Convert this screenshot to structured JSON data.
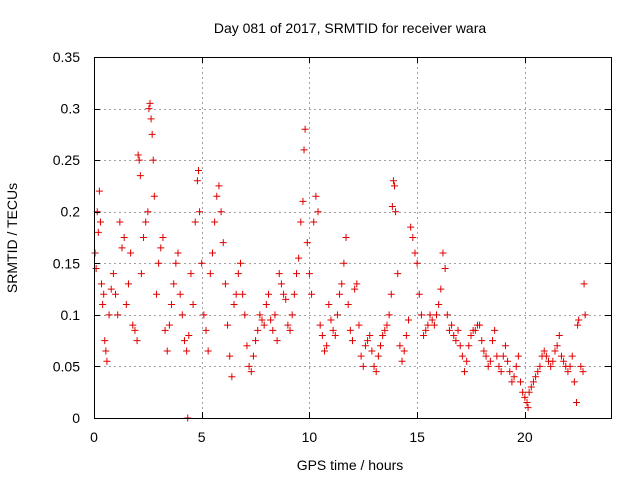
{
  "chart_data": {
    "type": "scatter",
    "title": "Day 081 of 2017, SRMTID for receiver wara",
    "xlabel": "GPS time / hours",
    "ylabel": "SRMTID / TECUs",
    "xlim": [
      0,
      24
    ],
    "ylim": [
      0,
      0.35
    ],
    "xticks": [
      0,
      5,
      10,
      15,
      20
    ],
    "xtick_labels": [
      "0",
      "5",
      "10",
      "15",
      "20"
    ],
    "yticks": [
      0,
      0.05,
      0.1,
      0.15,
      0.2,
      0.25,
      0.3,
      0.35
    ],
    "ytick_labels": [
      "0",
      "0.05",
      "0.1",
      "0.15",
      "0.2",
      "0.25",
      "0.3",
      "0.35"
    ],
    "grid": true,
    "marker": "+",
    "color": "#e00000",
    "series": [
      {
        "name": "SRMTID",
        "points": [
          [
            0.05,
            0.16
          ],
          [
            0.1,
            0.145
          ],
          [
            0.15,
            0.2
          ],
          [
            0.2,
            0.18
          ],
          [
            0.25,
            0.22
          ],
          [
            0.3,
            0.19
          ],
          [
            0.35,
            0.13
          ],
          [
            0.4,
            0.11
          ],
          [
            0.45,
            0.12
          ],
          [
            0.5,
            0.075
          ],
          [
            0.55,
            0.065
          ],
          [
            0.6,
            0.055
          ],
          [
            0.7,
            0.1
          ],
          [
            0.8,
            0.125
          ],
          [
            0.9,
            0.14
          ],
          [
            1.0,
            0.12
          ],
          [
            1.1,
            0.1
          ],
          [
            1.2,
            0.19
          ],
          [
            1.3,
            0.165
          ],
          [
            1.4,
            0.175
          ],
          [
            1.5,
            0.11
          ],
          [
            1.6,
            0.13
          ],
          [
            1.7,
            0.16
          ],
          [
            1.8,
            0.09
          ],
          [
            1.9,
            0.085
          ],
          [
            2.0,
            0.075
          ],
          [
            2.05,
            0.255
          ],
          [
            2.1,
            0.25
          ],
          [
            2.15,
            0.235
          ],
          [
            2.2,
            0.14
          ],
          [
            2.3,
            0.175
          ],
          [
            2.4,
            0.19
          ],
          [
            2.5,
            0.2
          ],
          [
            2.55,
            0.3
          ],
          [
            2.6,
            0.305
          ],
          [
            2.65,
            0.29
          ],
          [
            2.7,
            0.275
          ],
          [
            2.75,
            0.25
          ],
          [
            2.8,
            0.215
          ],
          [
            2.9,
            0.12
          ],
          [
            3.0,
            0.15
          ],
          [
            3.1,
            0.165
          ],
          [
            3.2,
            0.175
          ],
          [
            3.3,
            0.085
          ],
          [
            3.4,
            0.065
          ],
          [
            3.5,
            0.09
          ],
          [
            3.6,
            0.11
          ],
          [
            3.7,
            0.13
          ],
          [
            3.8,
            0.15
          ],
          [
            3.9,
            0.16
          ],
          [
            4.0,
            0.12
          ],
          [
            4.1,
            0.1
          ],
          [
            4.2,
            0.075
          ],
          [
            4.3,
            0.065
          ],
          [
            4.35,
            0.0
          ],
          [
            4.4,
            0.08
          ],
          [
            4.5,
            0.14
          ],
          [
            4.6,
            0.11
          ],
          [
            4.7,
            0.19
          ],
          [
            4.8,
            0.23
          ],
          [
            4.85,
            0.24
          ],
          [
            4.9,
            0.2
          ],
          [
            5.0,
            0.15
          ],
          [
            5.1,
            0.1
          ],
          [
            5.2,
            0.085
          ],
          [
            5.3,
            0.065
          ],
          [
            5.4,
            0.14
          ],
          [
            5.5,
            0.16
          ],
          [
            5.6,
            0.19
          ],
          [
            5.7,
            0.215
          ],
          [
            5.8,
            0.225
          ],
          [
            5.9,
            0.2
          ],
          [
            6.0,
            0.17
          ],
          [
            6.1,
            0.13
          ],
          [
            6.2,
            0.09
          ],
          [
            6.3,
            0.06
          ],
          [
            6.4,
            0.04
          ],
          [
            6.5,
            0.11
          ],
          [
            6.6,
            0.12
          ],
          [
            6.7,
            0.14
          ],
          [
            6.8,
            0.15
          ],
          [
            6.9,
            0.12
          ],
          [
            7.0,
            0.1
          ],
          [
            7.1,
            0.07
          ],
          [
            7.2,
            0.05
          ],
          [
            7.3,
            0.045
          ],
          [
            7.4,
            0.06
          ],
          [
            7.5,
            0.075
          ],
          [
            7.6,
            0.085
          ],
          [
            7.7,
            0.1
          ],
          [
            7.8,
            0.095
          ],
          [
            7.9,
            0.09
          ],
          [
            8.0,
            0.11
          ],
          [
            8.1,
            0.12
          ],
          [
            8.2,
            0.095
          ],
          [
            8.3,
            0.085
          ],
          [
            8.4,
            0.1
          ],
          [
            8.5,
            0.075
          ],
          [
            8.6,
            0.14
          ],
          [
            8.7,
            0.13
          ],
          [
            8.8,
            0.12
          ],
          [
            8.9,
            0.115
          ],
          [
            9.0,
            0.09
          ],
          [
            9.1,
            0.085
          ],
          [
            9.2,
            0.1
          ],
          [
            9.3,
            0.12
          ],
          [
            9.4,
            0.14
          ],
          [
            9.5,
            0.155
          ],
          [
            9.6,
            0.19
          ],
          [
            9.7,
            0.21
          ],
          [
            9.75,
            0.26
          ],
          [
            9.8,
            0.28
          ],
          [
            9.9,
            0.17
          ],
          [
            10.0,
            0.14
          ],
          [
            10.1,
            0.12
          ],
          [
            10.2,
            0.19
          ],
          [
            10.3,
            0.215
          ],
          [
            10.4,
            0.2
          ],
          [
            10.5,
            0.09
          ],
          [
            10.6,
            0.08
          ],
          [
            10.7,
            0.065
          ],
          [
            10.8,
            0.07
          ],
          [
            10.9,
            0.11
          ],
          [
            11.0,
            0.095
          ],
          [
            11.1,
            0.085
          ],
          [
            11.2,
            0.08
          ],
          [
            11.3,
            0.1
          ],
          [
            11.4,
            0.12
          ],
          [
            11.5,
            0.13
          ],
          [
            11.6,
            0.15
          ],
          [
            11.7,
            0.175
          ],
          [
            11.8,
            0.11
          ],
          [
            11.9,
            0.085
          ],
          [
            12.0,
            0.075
          ],
          [
            12.1,
            0.125
          ],
          [
            12.2,
            0.13
          ],
          [
            12.3,
            0.09
          ],
          [
            12.4,
            0.06
          ],
          [
            12.5,
            0.05
          ],
          [
            12.6,
            0.07
          ],
          [
            12.7,
            0.075
          ],
          [
            12.8,
            0.08
          ],
          [
            12.9,
            0.065
          ],
          [
            13.0,
            0.05
          ],
          [
            13.1,
            0.045
          ],
          [
            13.2,
            0.06
          ],
          [
            13.3,
            0.07
          ],
          [
            13.4,
            0.08
          ],
          [
            13.5,
            0.085
          ],
          [
            13.6,
            0.09
          ],
          [
            13.7,
            0.1
          ],
          [
            13.8,
            0.12
          ],
          [
            13.85,
            0.205
          ],
          [
            13.9,
            0.23
          ],
          [
            13.95,
            0.225
          ],
          [
            14.0,
            0.2
          ],
          [
            14.1,
            0.14
          ],
          [
            14.2,
            0.07
          ],
          [
            14.3,
            0.055
          ],
          [
            14.4,
            0.065
          ],
          [
            14.5,
            0.08
          ],
          [
            14.6,
            0.095
          ],
          [
            14.7,
            0.185
          ],
          [
            14.8,
            0.175
          ],
          [
            14.9,
            0.16
          ],
          [
            15.0,
            0.15
          ],
          [
            15.1,
            0.12
          ],
          [
            15.2,
            0.1
          ],
          [
            15.3,
            0.08
          ],
          [
            15.4,
            0.085
          ],
          [
            15.5,
            0.09
          ],
          [
            15.6,
            0.1
          ],
          [
            15.7,
            0.095
          ],
          [
            15.8,
            0.09
          ],
          [
            15.9,
            0.1
          ],
          [
            16.0,
            0.11
          ],
          [
            16.1,
            0.125
          ],
          [
            16.2,
            0.16
          ],
          [
            16.3,
            0.145
          ],
          [
            16.4,
            0.1
          ],
          [
            16.5,
            0.085
          ],
          [
            16.6,
            0.09
          ],
          [
            16.7,
            0.08
          ],
          [
            16.8,
            0.075
          ],
          [
            16.9,
            0.085
          ],
          [
            17.0,
            0.07
          ],
          [
            17.1,
            0.06
          ],
          [
            17.2,
            0.045
          ],
          [
            17.3,
            0.055
          ],
          [
            17.4,
            0.07
          ],
          [
            17.5,
            0.08
          ],
          [
            17.6,
            0.085
          ],
          [
            17.7,
            0.085
          ],
          [
            17.8,
            0.09
          ],
          [
            17.9,
            0.09
          ],
          [
            18.0,
            0.075
          ],
          [
            18.1,
            0.065
          ],
          [
            18.2,
            0.06
          ],
          [
            18.3,
            0.05
          ],
          [
            18.4,
            0.055
          ],
          [
            18.5,
            0.075
          ],
          [
            18.6,
            0.085
          ],
          [
            18.7,
            0.06
          ],
          [
            18.8,
            0.05
          ],
          [
            18.9,
            0.045
          ],
          [
            19.0,
            0.06
          ],
          [
            19.1,
            0.07
          ],
          [
            19.2,
            0.055
          ],
          [
            19.3,
            0.045
          ],
          [
            19.4,
            0.035
          ],
          [
            19.5,
            0.04
          ],
          [
            19.6,
            0.05
          ],
          [
            19.7,
            0.06
          ],
          [
            19.8,
            0.035
          ],
          [
            19.9,
            0.025
          ],
          [
            20.0,
            0.02
          ],
          [
            20.1,
            0.015
          ],
          [
            20.15,
            0.01
          ],
          [
            20.2,
            0.025
          ],
          [
            20.3,
            0.03
          ],
          [
            20.4,
            0.035
          ],
          [
            20.5,
            0.04
          ],
          [
            20.6,
            0.045
          ],
          [
            20.7,
            0.05
          ],
          [
            20.8,
            0.06
          ],
          [
            20.9,
            0.065
          ],
          [
            21.0,
            0.06
          ],
          [
            21.1,
            0.055
          ],
          [
            21.2,
            0.05
          ],
          [
            21.3,
            0.055
          ],
          [
            21.4,
            0.065
          ],
          [
            21.5,
            0.07
          ],
          [
            21.6,
            0.08
          ],
          [
            21.7,
            0.06
          ],
          [
            21.8,
            0.055
          ],
          [
            21.9,
            0.05
          ],
          [
            22.0,
            0.045
          ],
          [
            22.1,
            0.05
          ],
          [
            22.2,
            0.06
          ],
          [
            22.3,
            0.035
          ],
          [
            22.4,
            0.015
          ],
          [
            22.45,
            0.09
          ],
          [
            22.5,
            0.095
          ],
          [
            22.6,
            0.05
          ],
          [
            22.7,
            0.045
          ],
          [
            22.75,
            0.13
          ],
          [
            22.8,
            0.1
          ]
        ]
      }
    ]
  }
}
